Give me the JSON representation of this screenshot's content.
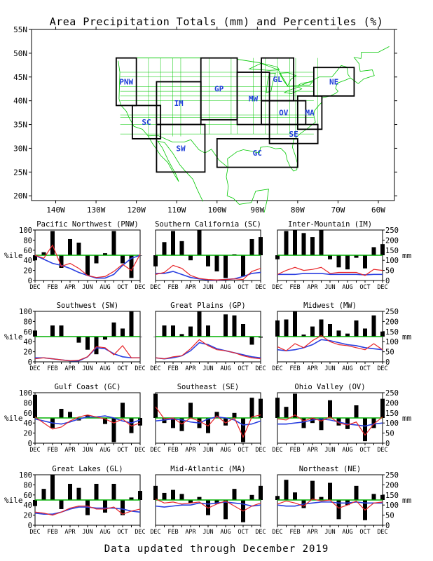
{
  "title": "Area Precipitation Totals (mm) and Percentiles (%)",
  "footer": "Data updated through December 2019",
  "map": {
    "lat_labels": [
      "55N",
      "50N",
      "45N",
      "40N",
      "35N",
      "30N",
      "25N",
      "20N"
    ],
    "lat_values": [
      55,
      50,
      45,
      40,
      35,
      30,
      25,
      20
    ],
    "lon_labels": [
      "140W",
      "130W",
      "120W",
      "110W",
      "100W",
      "90W",
      "80W",
      "70W",
      "60W"
    ],
    "lon_values": [
      -140,
      -130,
      -120,
      -110,
      -100,
      -90,
      -80,
      -70,
      -60
    ],
    "regions": [
      {
        "code": "PNW",
        "lon": [
          -125,
          -120
        ],
        "lat": [
          39,
          49
        ]
      },
      {
        "code": "SC",
        "lon": [
          -121,
          -114
        ],
        "lat": [
          32,
          39
        ]
      },
      {
        "code": "IM",
        "lon": [
          -115,
          -104
        ],
        "lat": [
          35,
          44
        ]
      },
      {
        "code": "SW",
        "lon": [
          -115,
          -103
        ],
        "lat": [
          25,
          35
        ]
      },
      {
        "code": "GP",
        "lon": [
          -104,
          -95
        ],
        "lat": [
          36,
          49
        ]
      },
      {
        "code": "MW",
        "lon": [
          -95,
          -87
        ],
        "lat": [
          35,
          46
        ]
      },
      {
        "code": "GL",
        "lon": [
          -89,
          -81
        ],
        "lat": [
          40,
          49
        ]
      },
      {
        "code": "OV",
        "lon": [
          -89,
          -78
        ],
        "lat": [
          35,
          40
        ]
      },
      {
        "code": "SE",
        "lon": [
          -87,
          -75
        ],
        "lat": [
          31,
          35
        ]
      },
      {
        "code": "GC",
        "lon": [
          -100,
          -80
        ],
        "lat": [
          26,
          32
        ]
      },
      {
        "code": "MA",
        "lon": [
          -80,
          -74
        ],
        "lat": [
          34,
          41
        ]
      },
      {
        "code": "NE",
        "lon": [
          -76,
          -66
        ],
        "lat": [
          41,
          47
        ]
      }
    ],
    "label_color": "#1f3fd8",
    "border_color": "#00c800"
  },
  "axis_units": {
    "left": "%ile",
    "right": "mm"
  },
  "chart_data": {
    "type": "bar",
    "months": [
      "DEC",
      "JAN",
      "FEB",
      "MAR",
      "APR",
      "MAY",
      "JUN",
      "JUL",
      "AUG",
      "SEP",
      "OCT",
      "NOV",
      "DEC"
    ],
    "month_tick_labels": [
      "DEC",
      "FEB",
      "APR",
      "JUN",
      "AUG",
      "OCT",
      "DEC"
    ],
    "left_axis": {
      "label": "%ile",
      "ylim": [
        0,
        100
      ],
      "ticks": [
        0,
        20,
        40,
        60,
        80,
        100
      ]
    },
    "right_axis": {
      "label": "mm",
      "ylim": [
        0,
        250
      ],
      "ticks": [
        0,
        50,
        100,
        150,
        200,
        250
      ]
    },
    "reference_line_percentile": 50,
    "colors": {
      "bars": "#000000",
      "observed_mm": "#e8262a",
      "normal_mm": "#2a3fe0",
      "reference": "#00b000"
    },
    "panels": [
      {
        "name": "Pacific Northwest (PNW)",
        "percentile": [
          40,
          56,
          98,
          25,
          82,
          75,
          10,
          34,
          54,
          98,
          34,
          5,
          50
        ],
        "observed_mm": [
          125,
          110,
          175,
          70,
          85,
          60,
          25,
          15,
          20,
          45,
          80,
          50,
          130
        ],
        "normal_mm": [
          125,
          105,
          85,
          75,
          60,
          40,
          25,
          12,
          12,
          30,
          75,
          110,
          125
        ]
      },
      {
        "name": "Southern California (SC)",
        "percentile": [
          28,
          76,
          98,
          78,
          40,
          100,
          28,
          18,
          5,
          52,
          8,
          82,
          86
        ],
        "observed_mm": [
          30,
          40,
          75,
          60,
          25,
          10,
          5,
          3,
          5,
          8,
          5,
          45,
          60
        ],
        "normal_mm": [
          35,
          35,
          45,
          30,
          15,
          8,
          3,
          2,
          5,
          8,
          20,
          35,
          40
        ]
      },
      {
        "name": "Inter-Mountain (IM)",
        "percentile": [
          42,
          98,
          100,
          94,
          86,
          100,
          42,
          26,
          22,
          45,
          24,
          66,
          72
        ],
        "observed_mm": [
          30,
          50,
          65,
          50,
          55,
          65,
          35,
          40,
          40,
          40,
          25,
          55,
          50
        ],
        "normal_mm": [
          30,
          30,
          30,
          35,
          35,
          35,
          30,
          30,
          30,
          30,
          28,
          30,
          30
        ]
      },
      {
        "name": "Southwest (SW)",
        "percentile": [
          62,
          50,
          72,
          72,
          50,
          38,
          24,
          15,
          44,
          78,
          66,
          100,
          50
        ],
        "observed_mm": [
          15,
          20,
          15,
          10,
          5,
          8,
          25,
          75,
          70,
          35,
          80,
          20,
          20
        ],
        "normal_mm": [
          20,
          20,
          15,
          10,
          5,
          5,
          25,
          70,
          65,
          40,
          25,
          20,
          20
        ]
      },
      {
        "name": "Great Plains (GP)",
        "percentile": [
          50,
          72,
          72,
          55,
          70,
          100,
          72,
          50,
          94,
          92,
          75,
          34,
          48
        ],
        "observed_mm": [
          20,
          15,
          25,
          30,
          65,
          110,
          80,
          60,
          55,
          45,
          30,
          20,
          15
        ],
        "normal_mm": [
          20,
          15,
          20,
          30,
          55,
          95,
          85,
          65,
          55,
          45,
          35,
          25,
          20
        ]
      },
      {
        "name": "Midwest (MW)",
        "percentile": [
          82,
          84,
          100,
          54,
          70,
          84,
          75,
          62,
          56,
          82,
          66,
          92,
          60
        ],
        "observed_mm": [
          75,
          55,
          90,
          70,
          105,
          130,
          100,
          85,
          80,
          70,
          60,
          90,
          60
        ],
        "normal_mm": [
          60,
          55,
          60,
          70,
          85,
          110,
          105,
          95,
          85,
          80,
          70,
          65,
          60
        ]
      },
      {
        "name": "Gulf Coast (GC)",
        "percentile": [
          96,
          50,
          30,
          68,
          62,
          45,
          55,
          50,
          38,
          2,
          80,
          20,
          35
        ],
        "observed_mm": [
          130,
          100,
          70,
          80,
          110,
          130,
          140,
          130,
          120,
          100,
          120,
          85,
          100
        ],
        "normal_mm": [
          120,
          110,
          100,
          95,
          105,
          120,
          130,
          130,
          135,
          125,
          110,
          100,
          115
        ]
      },
      {
        "name": "Southeast (SE)",
        "percentile": [
          98,
          40,
          30,
          24,
          80,
          30,
          20,
          62,
          35,
          60,
          2,
          90,
          88
        ],
        "observed_mm": [
          180,
          120,
          125,
          95,
          125,
          110,
          85,
          135,
          100,
          125,
          30,
          130,
          140
        ],
        "normal_mm": [
          110,
          115,
          120,
          115,
          105,
          100,
          120,
          130,
          125,
          115,
          90,
          95,
          110
        ]
      },
      {
        "name": "Ohio Valley (OV)",
        "percentile": [
          90,
          72,
          98,
          30,
          40,
          26,
          85,
          35,
          28,
          75,
          4,
          30,
          88
        ],
        "observed_mm": [
          120,
          115,
          140,
          110,
          125,
          110,
          130,
          100,
          90,
          105,
          40,
          95,
          130
        ],
        "normal_mm": [
          95,
          95,
          100,
          105,
          115,
          120,
          115,
          105,
          95,
          90,
          85,
          95,
          100
        ]
      },
      {
        "name": "Great Lakes (GL)",
        "percentile": [
          38,
          72,
          100,
          32,
          82,
          74,
          20,
          82,
          25,
          82,
          20,
          55,
          68
        ],
        "observed_mm": [
          65,
          60,
          50,
          65,
          85,
          95,
          95,
          80,
          80,
          90,
          55,
          70,
          80
        ],
        "normal_mm": [
          60,
          55,
          55,
          65,
          80,
          90,
          90,
          85,
          85,
          85,
          80,
          70,
          65
        ]
      },
      {
        "name": "Mid-Atlantic (MA)",
        "percentile": [
          78,
          64,
          70,
          62,
          44,
          56,
          20,
          42,
          12,
          72,
          6,
          60,
          78
        ],
        "observed_mm": [
          130,
          110,
          115,
          105,
          110,
          115,
          85,
          105,
          120,
          95,
          70,
          95,
          110
        ],
        "normal_mm": [
          95,
          90,
          95,
          100,
          100,
          110,
          105,
          110,
          115,
          110,
          105,
          95,
          100
        ]
      },
      {
        "name": "Northeast (NE)",
        "percentile": [
          58,
          90,
          65,
          34,
          88,
          56,
          84,
          12,
          40,
          78,
          10,
          62,
          60
        ],
        "observed_mm": [
          105,
          120,
          110,
          95,
          130,
          120,
          125,
          85,
          100,
          120,
          75,
          110,
          115
        ],
        "normal_mm": [
          100,
          95,
          95,
          105,
          110,
          115,
          115,
          110,
          110,
          115,
          110,
          110,
          110
        ]
      }
    ]
  }
}
